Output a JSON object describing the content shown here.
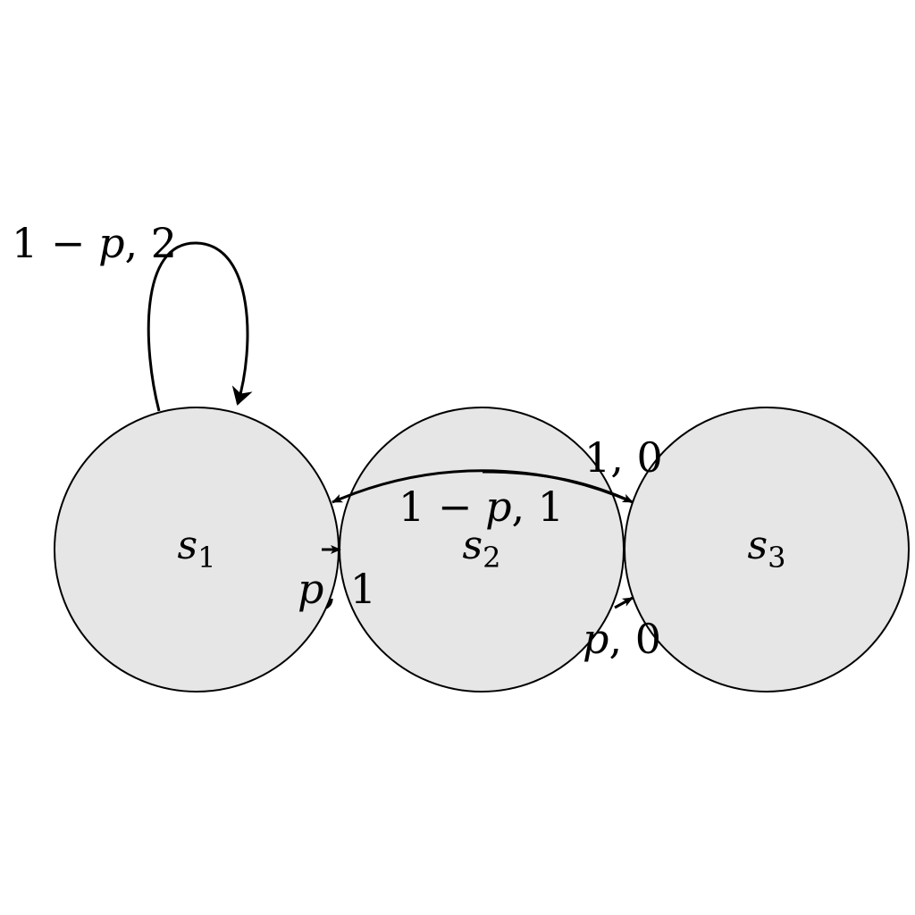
{
  "colors": {
    "node_fill": "#e6e6e6",
    "stroke": "#000000",
    "background": "#ffffff"
  },
  "states": [
    {
      "id": "s1",
      "letter": "s",
      "index": "1"
    },
    {
      "id": "s2",
      "letter": "s",
      "index": "2"
    },
    {
      "id": "s3",
      "letter": "s",
      "index": "3"
    }
  ],
  "transitions": [
    {
      "from": "s1",
      "to": "s1",
      "prob_pre": "1 − ",
      "prob_var": "p",
      "reward": ", 2"
    },
    {
      "from": "s2",
      "to": "s1",
      "prob_pre": "1 − ",
      "prob_var": "p",
      "reward": ", 1"
    },
    {
      "from": "s1",
      "to": "s2",
      "prob_pre": "",
      "prob_var": "p",
      "reward": ", 1"
    },
    {
      "from": "s2",
      "to": "s3",
      "prob_pre": "1",
      "prob_var": "",
      "reward": ", 0"
    },
    {
      "from": "s2",
      "to": "s3",
      "prob_pre": "",
      "prob_var": "p",
      "reward": ", 0"
    }
  ]
}
